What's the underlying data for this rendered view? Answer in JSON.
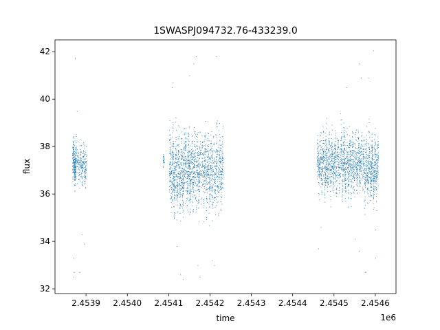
{
  "chart_data": {
    "type": "scatter",
    "title": "1SWASPJ094732.76-433239.0",
    "xlabel": "time",
    "ylabel": "flux",
    "x_offset_label": "1e6",
    "x_scale": 1000000,
    "xlim": [
      2453825,
      2454650
    ],
    "ylim": [
      31.8,
      42.5
    ],
    "xticks": [
      2453900,
      2454000,
      2454100,
      2454200,
      2454300,
      2454400,
      2454500,
      2454600
    ],
    "xtick_labels": [
      "2.4539",
      "2.4540",
      "2.4541",
      "2.4542",
      "2.4543",
      "2.4544",
      "2.4545",
      "2.4546"
    ],
    "yticks": [
      32,
      34,
      36,
      38,
      40,
      42
    ],
    "ytick_labels": [
      "32",
      "34",
      "36",
      "38",
      "40",
      "42"
    ],
    "grid": false,
    "marker_color": "#1f77b4",
    "segments": [
      {
        "x_start": 2453867,
        "x_end": 2453876,
        "y_center": 37.3,
        "y_spread": 0.9,
        "count": 260
      },
      {
        "x_start": 2453878,
        "x_end": 2453900,
        "y_center": 37.2,
        "y_spread": 0.8,
        "count": 230
      },
      {
        "x_start": 2454086,
        "x_end": 2454089,
        "y_center": 37.3,
        "y_spread": 0.3,
        "count": 25
      },
      {
        "x_start": 2454101,
        "x_end": 2454138,
        "y_center": 36.9,
        "y_spread": 1.6,
        "count": 650
      },
      {
        "x_start": 2454139,
        "x_end": 2454176,
        "y_center": 37.0,
        "y_spread": 1.5,
        "count": 620
      },
      {
        "x_start": 2454179,
        "x_end": 2454232,
        "y_center": 37.0,
        "y_spread": 1.6,
        "count": 720
      },
      {
        "x_start": 2454458,
        "x_end": 2454514,
        "y_center": 37.3,
        "y_spread": 1.2,
        "count": 760
      },
      {
        "x_start": 2454515,
        "x_end": 2454568,
        "y_center": 37.3,
        "y_spread": 1.3,
        "count": 760
      },
      {
        "x_start": 2454569,
        "x_end": 2454607,
        "y_center": 37.1,
        "y_spread": 1.3,
        "count": 620
      }
    ],
    "outliers": [
      {
        "x": 2453873,
        "y": 41.7
      },
      {
        "x": 2453873,
        "y": 41.75
      },
      {
        "x": 2453871,
        "y": 32.7
      },
      {
        "x": 2453870,
        "y": 32.5
      },
      {
        "x": 2453884,
        "y": 32.7
      },
      {
        "x": 2453870,
        "y": 33.3
      },
      {
        "x": 2453895,
        "y": 33.9
      },
      {
        "x": 2453890,
        "y": 34.3
      },
      {
        "x": 2453878,
        "y": 39.5
      },
      {
        "x": 2454110,
        "y": 40.7
      },
      {
        "x": 2454108,
        "y": 40.5
      },
      {
        "x": 2454160,
        "y": 41.5
      },
      {
        "x": 2454166,
        "y": 41.8
      },
      {
        "x": 2454215,
        "y": 41.8
      },
      {
        "x": 2454135,
        "y": 32.4
      },
      {
        "x": 2454128,
        "y": 32.6
      },
      {
        "x": 2454175,
        "y": 32.5
      },
      {
        "x": 2454170,
        "y": 33.0
      },
      {
        "x": 2454210,
        "y": 33.0
      },
      {
        "x": 2454205,
        "y": 33.2
      },
      {
        "x": 2454120,
        "y": 33.8
      },
      {
        "x": 2454150,
        "y": 41.0
      },
      {
        "x": 2454462,
        "y": 33.7
      },
      {
        "x": 2454468,
        "y": 34.6
      },
      {
        "x": 2454560,
        "y": 41.5
      },
      {
        "x": 2454595,
        "y": 42.05
      },
      {
        "x": 2454583,
        "y": 40.9
      },
      {
        "x": 2454565,
        "y": 40.9
      },
      {
        "x": 2454530,
        "y": 40.5
      },
      {
        "x": 2454575,
        "y": 32.7
      },
      {
        "x": 2454600,
        "y": 33.3
      },
      {
        "x": 2454560,
        "y": 33.6
      },
      {
        "x": 2454550,
        "y": 34.1
      },
      {
        "x": 2454600,
        "y": 34.5
      },
      {
        "x": 2454515,
        "y": 39.4
      },
      {
        "x": 2454482,
        "y": 39.2
      }
    ]
  }
}
